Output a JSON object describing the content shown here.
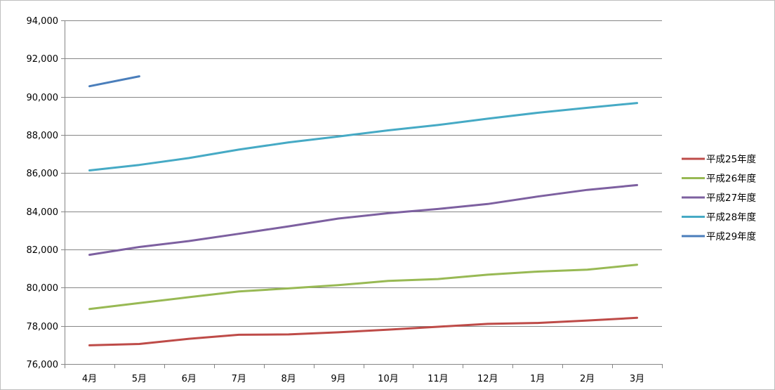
{
  "chart_data": {
    "type": "line",
    "title": "",
    "xlabel": "",
    "ylabel": "",
    "categories": [
      "4月",
      "5月",
      "6月",
      "7月",
      "8月",
      "9月",
      "10月",
      "11月",
      "12月",
      "1月",
      "2月",
      "3月"
    ],
    "ylim": [
      76000,
      94000
    ],
    "ytick_values": [
      76000,
      78000,
      80000,
      82000,
      84000,
      86000,
      88000,
      90000,
      92000,
      94000
    ],
    "ytick_labels": [
      "76,000",
      "78,000",
      "80,000",
      "82,000",
      "84,000",
      "86,000",
      "88,000",
      "90,000",
      "92,000",
      "94,000"
    ],
    "grid": "horizontal",
    "legend_position": "right",
    "series": [
      {
        "name": "平成25年度",
        "color": "#be4b48",
        "values": [
          76980,
          77050,
          77320,
          77530,
          77550,
          77660,
          77800,
          77950,
          78100,
          78150,
          78280,
          78420
        ]
      },
      {
        "name": "平成26年度",
        "color": "#98b954",
        "values": [
          78880,
          79190,
          79500,
          79800,
          79960,
          80130,
          80350,
          80450,
          80680,
          80840,
          80940,
          81200
        ]
      },
      {
        "name": "平成27年度",
        "color": "#7d60a0",
        "values": [
          81720,
          82130,
          82440,
          82820,
          83210,
          83620,
          83900,
          84120,
          84380,
          84770,
          85120,
          85370
        ]
      },
      {
        "name": "平成28年度",
        "color": "#46aac5",
        "values": [
          86140,
          86430,
          86790,
          87230,
          87610,
          87920,
          88240,
          88520,
          88850,
          89160,
          89420,
          89670
        ]
      },
      {
        "name": "平成29年度",
        "color": "#4a7ebb",
        "values": [
          90550,
          91070,
          null,
          null,
          null,
          null,
          null,
          null,
          null,
          null,
          null,
          null
        ]
      }
    ]
  }
}
